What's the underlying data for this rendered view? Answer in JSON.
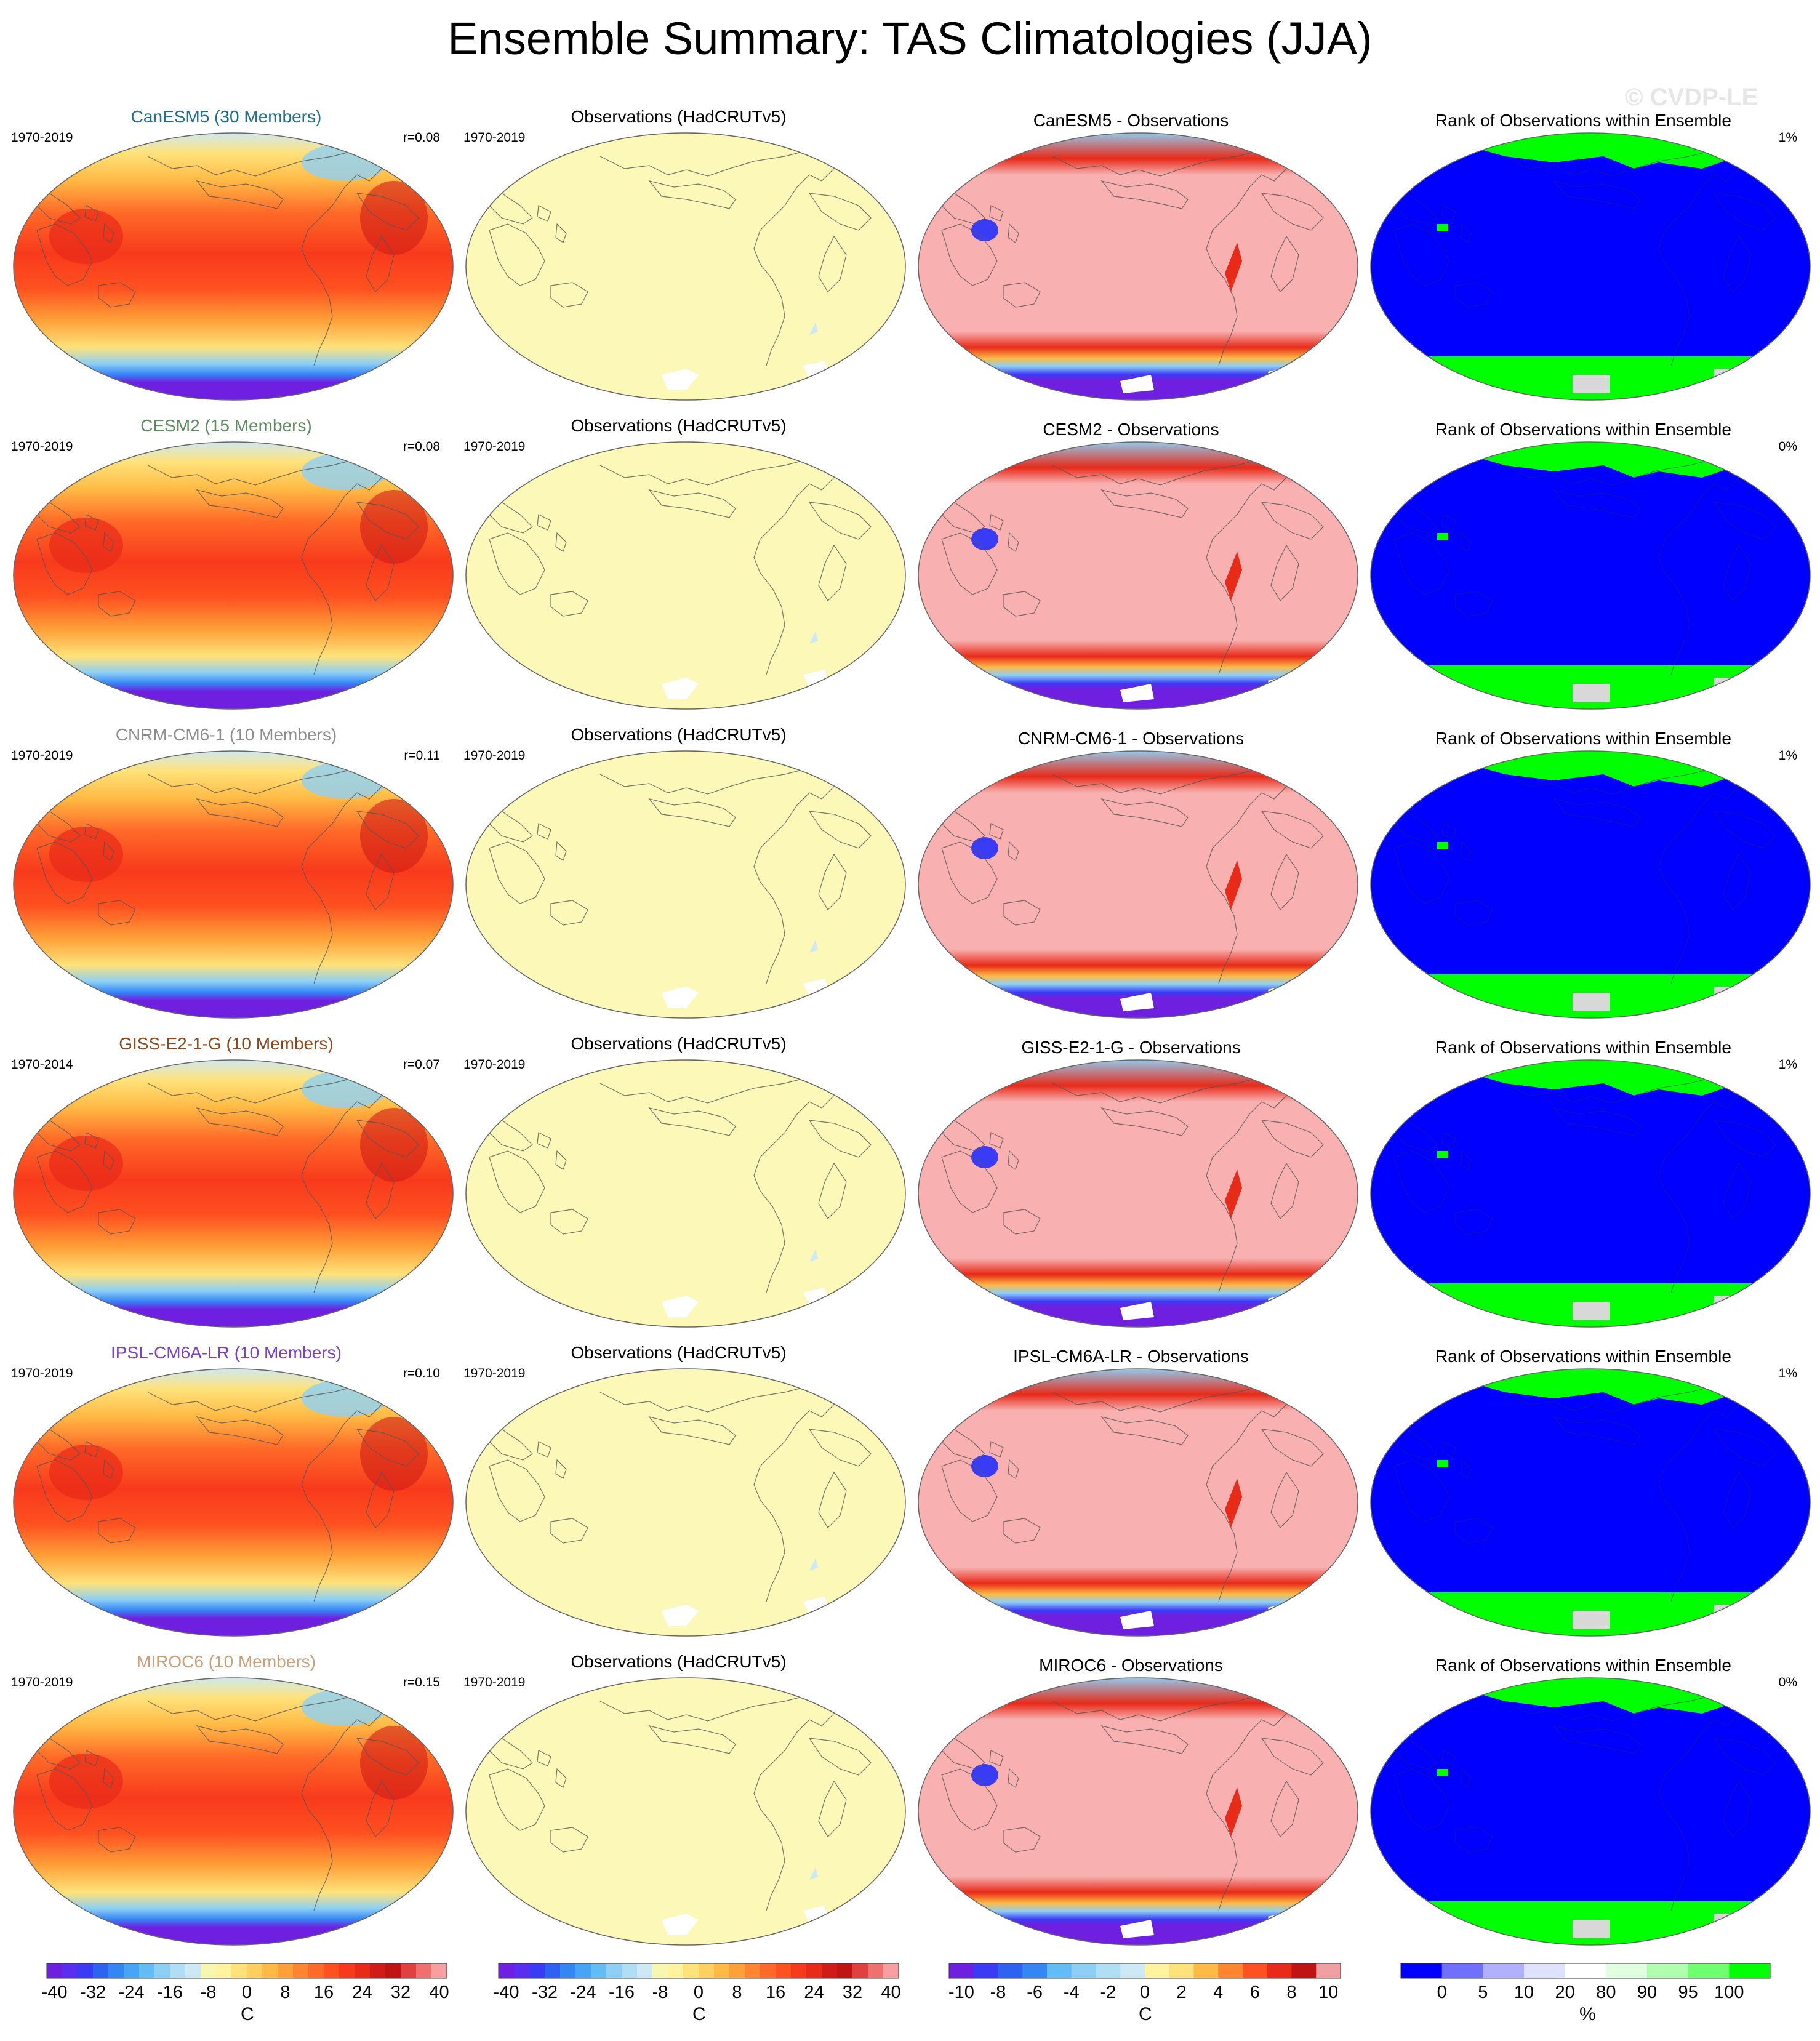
{
  "title": "Ensemble Summary: TAS Climatologies (JJA)",
  "watermark": "© CVDP-LE",
  "rows": [
    {
      "model_title": "CanESM5 (30 Members)",
      "model_color": "#1f6e8c",
      "model_years": "1970-2019",
      "corr": "r=0.08",
      "obs_title": "Observations (HadCRUTv5)",
      "obs_years": "1970-2019",
      "diff_title": "CanESM5 - Observations",
      "rank_title": "Rank of Observations within Ensemble",
      "rank_pct": "1%"
    },
    {
      "model_title": "CESM2 (15 Members)",
      "model_color": "#5d8a5e",
      "model_years": "1970-2019",
      "corr": "r=0.08",
      "obs_title": "Observations (HadCRUTv5)",
      "obs_years": "1970-2019",
      "diff_title": "CESM2 - Observations",
      "rank_title": "Rank of Observations within Ensemble",
      "rank_pct": "0%"
    },
    {
      "model_title": "CNRM-CM6-1 (10 Members)",
      "model_color": "#8c8c8c",
      "model_years": "1970-2019",
      "corr": "r=0.11",
      "obs_title": "Observations (HadCRUTv5)",
      "obs_years": "1970-2019",
      "diff_title": "CNRM-CM6-1 - Observations",
      "rank_title": "Rank of Observations within Ensemble",
      "rank_pct": "1%"
    },
    {
      "model_title": "GISS-E2-1-G (10 Members)",
      "model_color": "#8b4a1e",
      "model_years": "1970-2014",
      "corr": "r=0.07",
      "obs_title": "Observations (HadCRUTv5)",
      "obs_years": "1970-2019",
      "diff_title": "GISS-E2-1-G - Observations",
      "rank_title": "Rank of Observations within Ensemble",
      "rank_pct": "1%"
    },
    {
      "model_title": "IPSL-CM6A-LR (10 Members)",
      "model_color": "#7b3fd0",
      "model_years": "1970-2019",
      "corr": "r=0.10",
      "obs_title": "Observations (HadCRUTv5)",
      "obs_years": "1970-2019",
      "diff_title": "IPSL-CM6A-LR - Observations",
      "rank_title": "Rank of Observations within Ensemble",
      "rank_pct": "1%"
    },
    {
      "model_title": "MIROC6 (10 Members)",
      "model_color": "#c8a07a",
      "model_years": "1970-2019",
      "corr": "r=0.15",
      "obs_title": "Observations (HadCRUTv5)",
      "obs_years": "1970-2019",
      "diff_title": "MIROC6 - Observations",
      "rank_title": "Rank of Observations within Ensemble",
      "rank_pct": "0%"
    }
  ],
  "colorbars": [
    {
      "unit": "C",
      "labels": [
        "-40",
        "-32",
        "-24",
        "-16",
        "-8",
        "0",
        "8",
        "16",
        "24",
        "32",
        "40"
      ],
      "colors": [
        "#6f1fe0",
        "#5a2ef0",
        "#3a3cf5",
        "#2e63f2",
        "#3486f5",
        "#46a6f5",
        "#62bdf7",
        "#8ed0f5",
        "#b0def5",
        "#cce9f5",
        "#f7f7b0",
        "#fff3a0",
        "#ffe27a",
        "#ffd060",
        "#ffba45",
        "#ffa038",
        "#ff8530",
        "#ff6a28",
        "#ff5020",
        "#f83a1c",
        "#e82a18",
        "#d01c16",
        "#c01414",
        "#e04040",
        "#f07070",
        "#f8a0a0"
      ]
    },
    {
      "unit": "C",
      "labels": [
        "-40",
        "-32",
        "-24",
        "-16",
        "-8",
        "0",
        "8",
        "16",
        "24",
        "32",
        "40"
      ],
      "colors": [
        "#6f1fe0",
        "#5a2ef0",
        "#3a3cf5",
        "#2e63f2",
        "#3486f5",
        "#46a6f5",
        "#62bdf7",
        "#8ed0f5",
        "#b0def5",
        "#cce9f5",
        "#f7f7b0",
        "#fff3a0",
        "#ffe27a",
        "#ffd060",
        "#ffba45",
        "#ffa038",
        "#ff8530",
        "#ff6a28",
        "#ff5020",
        "#f83a1c",
        "#e82a18",
        "#d01c16",
        "#c01414",
        "#e04040",
        "#f07070",
        "#f8a0a0"
      ]
    },
    {
      "unit": "C",
      "labels": [
        "-10",
        "-8",
        "-6",
        "-4",
        "-2",
        "0",
        "2",
        "4",
        "6",
        "8",
        "10"
      ],
      "colors": [
        "#6f1fe0",
        "#3a3cf5",
        "#2e63f2",
        "#3486f5",
        "#62bdf7",
        "#8ed0f5",
        "#b0def5",
        "#cce9f5",
        "#fff3a0",
        "#ffe27a",
        "#ffba45",
        "#ff8530",
        "#ff5020",
        "#e82a18",
        "#c01414",
        "#f0a0a0"
      ]
    },
    {
      "unit": "%",
      "labels": [
        "0",
        "5",
        "10",
        "20",
        "80",
        "90",
        "95",
        "100"
      ],
      "colors": [
        "#0000ff",
        "#7070ff",
        "#b0b0ff",
        "#e0e0ff",
        "#ffffff",
        "#e0ffe0",
        "#b0ffb0",
        "#70ff70",
        "#00ff00"
      ]
    }
  ]
}
